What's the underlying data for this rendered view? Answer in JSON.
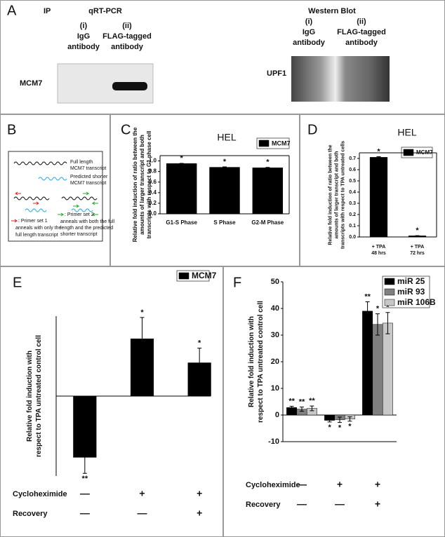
{
  "panel_labels": [
    "A",
    "B",
    "C",
    "D",
    "E",
    "F"
  ],
  "panel_a": {
    "ip": "IP",
    "qrt_pcr": {
      "title": "qRT-PCR",
      "lanes": [
        {
          "number": "(i)",
          "name": [
            "IgG",
            "antibody"
          ]
        },
        {
          "number": "(ii)",
          "name": [
            "FLAG-tagged",
            "antibody"
          ]
        }
      ],
      "target": "MCM7"
    },
    "western_blot": {
      "title": "Western Blot",
      "lanes": [
        {
          "number": "(i)",
          "name": [
            "IgG",
            "antibody"
          ]
        },
        {
          "number": "(ii)",
          "name": [
            "FLAG-tagged",
            "antibody"
          ]
        }
      ],
      "target": "UPF1"
    }
  },
  "panel_b": {
    "full_length": [
      "Full length",
      "MCM7 transcript"
    ],
    "shorter": [
      "Predicted shorter",
      "MCM7 transcript"
    ],
    "primer_1": [
      ": Primer set 1",
      "anneals with only the",
      "full length transcript"
    ],
    "primer_2": [
      ": Primer set 2",
      "anneals with both the full",
      "length and the predicted",
      "shorter transcript"
    ]
  },
  "chart_data": [
    {
      "type": "bar",
      "title": "HEL",
      "y_label": [
        "Relative fold induction of ratio between the",
        "amounts of larger transcript and both",
        "transcripts with respect to G1 phase cell"
      ],
      "categories": [
        [
          "G1-S Phase"
        ],
        [
          "S Phase"
        ],
        [
          "G2-M Phase"
        ]
      ],
      "series": [
        {
          "name": "MCM7",
          "color": "#000000",
          "values": [
            0.95,
            0.88,
            0.87
          ],
          "errors": [
            0.005,
            0.008,
            0.008
          ],
          "significance": [
            "*",
            "*",
            "*"
          ]
        }
      ],
      "ylim": [
        0,
        1.1
      ],
      "yticks": [
        {
          "value": 0,
          "label": "0.0"
        },
        0.2,
        0.4,
        0.6,
        0.8,
        {
          "value": 1,
          "label": "1.0"
        }
      ]
    },
    {
      "type": "bar",
      "title": "HEL",
      "y_label": [
        "Relative fold induction of ratio between the",
        "amounts of larger transcript and both",
        "transcripts with respect to TPA untreated cells"
      ],
      "categories": [
        [
          "+ TPA",
          "48 hrs"
        ],
        [
          "+ TPA",
          "72 hrs"
        ]
      ],
      "series": [
        {
          "name": "MCM7",
          "color": "#000000",
          "values": [
            0.71,
            0.01
          ],
          "errors": [
            0.006,
            0.002
          ],
          "significance": [
            "*",
            "*"
          ]
        }
      ],
      "ylim": [
        0,
        0.75
      ],
      "yticks": [
        {
          "value": 0,
          "label": "0.0"
        },
        0.1,
        0.2,
        0.3,
        0.4,
        0.5,
        0.6,
        0.7
      ]
    },
    {
      "type": "bar",
      "y_label": [
        "Relative fold induction with",
        "respect to TPA untreated control cell"
      ],
      "series": [
        {
          "name": "MCM7",
          "color": "#000000",
          "values": [
            -2.3,
            2.15,
            1.25
          ],
          "errors": [
            0.6,
            0.8,
            0.55
          ],
          "significance": [
            "**",
            "*",
            "*"
          ]
        }
      ],
      "treatments": [
        {
          "name": "Cycloheximide",
          "marks": [
            "—",
            "+",
            "+"
          ]
        },
        {
          "name": "Recovery",
          "marks": [
            "—",
            "—",
            "+"
          ]
        }
      ],
      "ylim": [
        -3,
        3
      ]
    },
    {
      "type": "bar",
      "y_label": [
        "Relative fold induction with",
        "respect to TPA untreated control cell"
      ],
      "series": [
        {
          "name": "miR 25",
          "color": "#000000",
          "values": [
            2.8,
            -2,
            39
          ],
          "errors": [
            0.5,
            0.6,
            3.5
          ],
          "significance": [
            "**",
            "*",
            "**"
          ]
        },
        {
          "name": "miR 93",
          "color": "#808080",
          "values": [
            2.2,
            -1.8,
            34
          ],
          "errors": [
            0.8,
            1,
            4
          ],
          "significance": [
            "**",
            "*",
            "*"
          ]
        },
        {
          "name": "miR 106B",
          "color": "#c8c8c8",
          "values": [
            2.5,
            -1.5,
            34.5
          ],
          "errors": [
            0.9,
            0.8,
            4
          ],
          "significance": [
            "**",
            "*",
            "*"
          ]
        }
      ],
      "treatments": [
        {
          "name": "Cycloheximide",
          "marks": [
            "—",
            "+",
            "+"
          ]
        },
        {
          "name": "Recovery",
          "marks": [
            "—",
            "—",
            "+"
          ]
        }
      ],
      "ylim": [
        -10,
        50
      ],
      "yticks": [
        -10,
        0,
        10,
        20,
        30,
        40,
        50
      ]
    }
  ]
}
